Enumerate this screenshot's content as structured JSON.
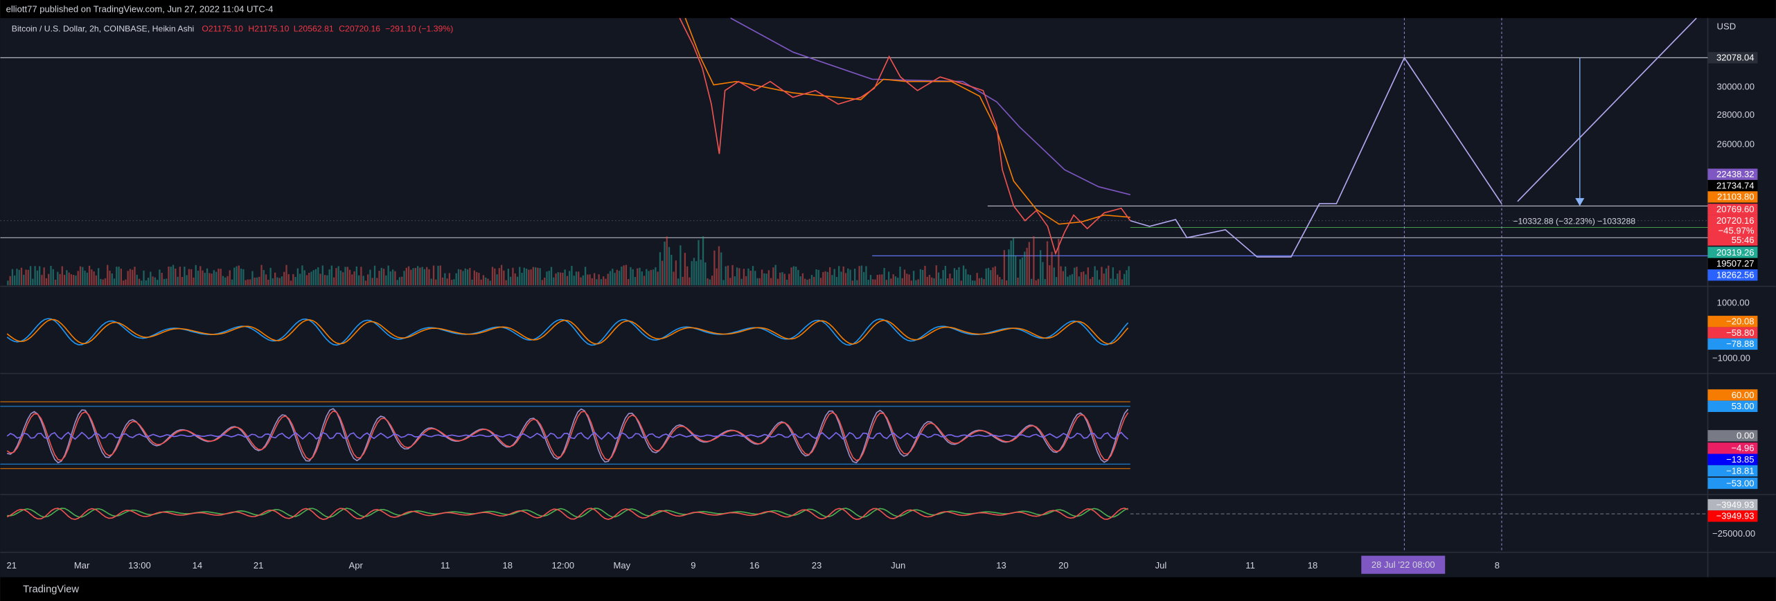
{
  "header": {
    "text": "elliott77 published on TradingView.com, Jun 27, 2022 11:04 UTC-4"
  },
  "legend": {
    "symbol": "Bitcoin / U.S. Dollar, 2h, COINBASE, Heikin Ashi",
    "open": "O21175.10",
    "high": "H21175.10",
    "low": "L20562.81",
    "close": "C20720.16",
    "change": "−291.10 (−1.39%)"
  },
  "currency": "USD",
  "price_axis": {
    "ticks": [
      "30000.00",
      "28000.00",
      "26000.00"
    ]
  },
  "price_labels": [
    {
      "text": "32078.04",
      "color": "#2a2e39"
    },
    {
      "text": "22438.32",
      "color": "#7e57c2"
    },
    {
      "text": "21734.74",
      "color": "#000000"
    },
    {
      "text": "21103.80",
      "color": "#f57c00"
    },
    {
      "text": "20769.60",
      "color": "#f23645"
    },
    {
      "text": "20720.16",
      "color": "#f23645"
    },
    {
      "text": "−45.97%",
      "color": "#f23645"
    },
    {
      "text": "55:46",
      "color": "#f23645"
    },
    {
      "text": "20319.26",
      "color": "#22ab94"
    },
    {
      "text": "19507.27",
      "color": "#000000"
    },
    {
      "text": "18262.56",
      "color": "#2962ff"
    }
  ],
  "measure": "−10332.88 (−32.23%) −1033288",
  "macd_axis": {
    "ticks": [
      "1000.00",
      "−1000.00"
    ],
    "labels": [
      {
        "text": "−20.08",
        "color": "#f57c00"
      },
      {
        "text": "−58.80",
        "color": "#f23645"
      },
      {
        "text": "−78.88",
        "color": "#2196f3"
      }
    ]
  },
  "osc_axis": {
    "labels": [
      {
        "text": "60.00",
        "color": "#f57c00"
      },
      {
        "text": "53.00",
        "color": "#2196f3"
      },
      {
        "text": "0.00",
        "color": "#787b86"
      },
      {
        "text": "−4.96",
        "color": "#e91e63"
      },
      {
        "text": "−13.85",
        "color": "#0000ff"
      },
      {
        "text": "−18.81",
        "color": "#2196f3"
      },
      {
        "text": "−53.00",
        "color": "#2196f3"
      }
    ]
  },
  "flow_axis": {
    "tick": "−25000.00",
    "labels": [
      {
        "text": "−3949.93",
        "color": "#b2b5be"
      },
      {
        "text": "−3949.93",
        "color": "#ff0000"
      }
    ]
  },
  "time_axis": [
    "21",
    "Mar",
    "13:00",
    "14",
    "21",
    "Apr",
    "11",
    "18",
    "12:00",
    "May",
    "9",
    "16",
    "23",
    "Jun",
    "13",
    "20",
    "Jul",
    "11",
    "18",
    "8"
  ],
  "time_highlight": "28 Jul '22  08:00",
  "footer": "TradingView"
}
